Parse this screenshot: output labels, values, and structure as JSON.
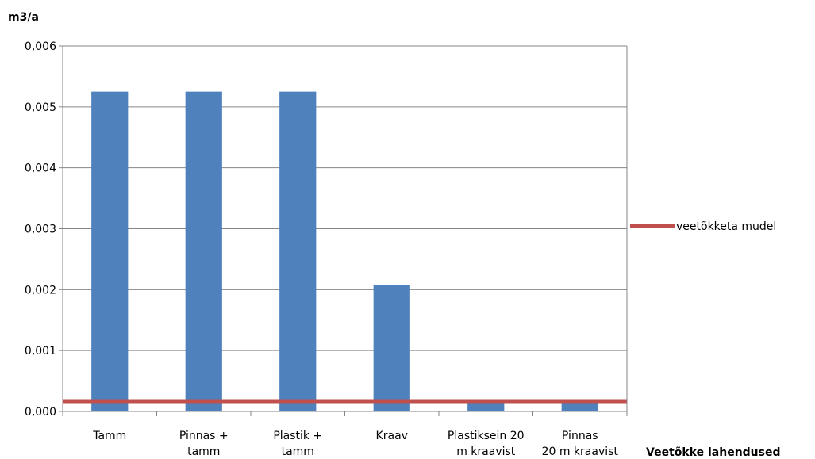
{
  "chart_data": {
    "type": "bar",
    "ylabel": "m3/a",
    "xlabel": "Veetõkke lahendused",
    "ylim": [
      0,
      0.006
    ],
    "yticks": [
      "0,000",
      "0,001",
      "0,002",
      "0,003",
      "0,004",
      "0,005",
      "0,006"
    ],
    "categories": [
      [
        "Tamm"
      ],
      [
        "Pinnas +",
        "tamm"
      ],
      [
        "Plastik +",
        "tamm"
      ],
      [
        "Kraav"
      ],
      [
        "Plastiksein 20",
        "m kraavist"
      ],
      [
        "Pinnas",
        "20 m kraavist"
      ]
    ],
    "series": [
      {
        "type": "bar",
        "values": [
          0.00525,
          0.00525,
          0.00525,
          0.00207,
          0.00015,
          0.00015
        ],
        "color": "#4f81bd"
      },
      {
        "name": "veetõkketa mudel",
        "type": "line",
        "value": 0.00017,
        "color": "#c0504d"
      }
    ],
    "grid": true,
    "legend": "right"
  }
}
